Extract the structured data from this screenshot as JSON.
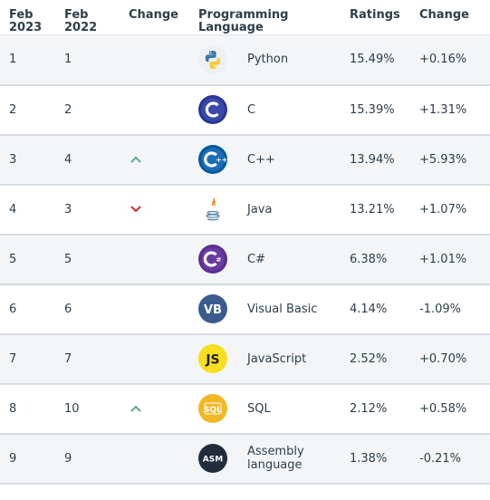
{
  "headers": {
    "feb2023": [
      "Feb",
      "2023"
    ],
    "feb2022": [
      "Feb",
      "2022"
    ],
    "change": "Change",
    "language": [
      "Programming",
      "Language"
    ],
    "ratings": "Ratings",
    "ratings_change": "Change"
  },
  "rows": [
    {
      "rank2023": "1",
      "rank2022": "1",
      "trend": "",
      "language": "Python",
      "rating": "15.49%",
      "change": "+0.16%",
      "icon": "python-icon"
    },
    {
      "rank2023": "2",
      "rank2022": "2",
      "trend": "",
      "language": "C",
      "rating": "15.39%",
      "change": "+1.31%",
      "icon": "c-icon"
    },
    {
      "rank2023": "3",
      "rank2022": "4",
      "trend": "up",
      "language": "C++",
      "rating": "13.94%",
      "change": "+5.93%",
      "icon": "cpp-icon"
    },
    {
      "rank2023": "4",
      "rank2022": "3",
      "trend": "down",
      "language": "Java",
      "rating": "13.21%",
      "change": "+1.07%",
      "icon": "java-icon"
    },
    {
      "rank2023": "5",
      "rank2022": "5",
      "trend": "",
      "language": "C#",
      "rating": "6.38%",
      "change": "+1.01%",
      "icon": "csharp-icon"
    },
    {
      "rank2023": "6",
      "rank2022": "6",
      "trend": "",
      "language": "Visual Basic",
      "rating": "4.14%",
      "change": "-1.09%",
      "icon": "vb-icon"
    },
    {
      "rank2023": "7",
      "rank2022": "7",
      "trend": "",
      "language": "JavaScript",
      "rating": "2.52%",
      "change": "+0.70%",
      "icon": "javascript-icon"
    },
    {
      "rank2023": "8",
      "rank2022": "10",
      "trend": "up",
      "language": "SQL",
      "rating": "2.12%",
      "change": "+0.58%",
      "icon": "sql-icon"
    },
    {
      "rank2023": "9",
      "rank2022": "9",
      "trend": "",
      "language": "Assembly language",
      "rating": "1.38%",
      "change": "-0.21%",
      "icon": "assembly-icon"
    }
  ],
  "logo_text": {
    "vb": "VB",
    "js": "JS",
    "sql": "SQL",
    "asm": "ASM",
    "c": "C"
  },
  "colors": {
    "text": "#2d3e4a",
    "up": "#6fa8a0",
    "down": "#d0353a",
    "row_alt": "#f3f5f7",
    "divider": "#d6dde3"
  }
}
